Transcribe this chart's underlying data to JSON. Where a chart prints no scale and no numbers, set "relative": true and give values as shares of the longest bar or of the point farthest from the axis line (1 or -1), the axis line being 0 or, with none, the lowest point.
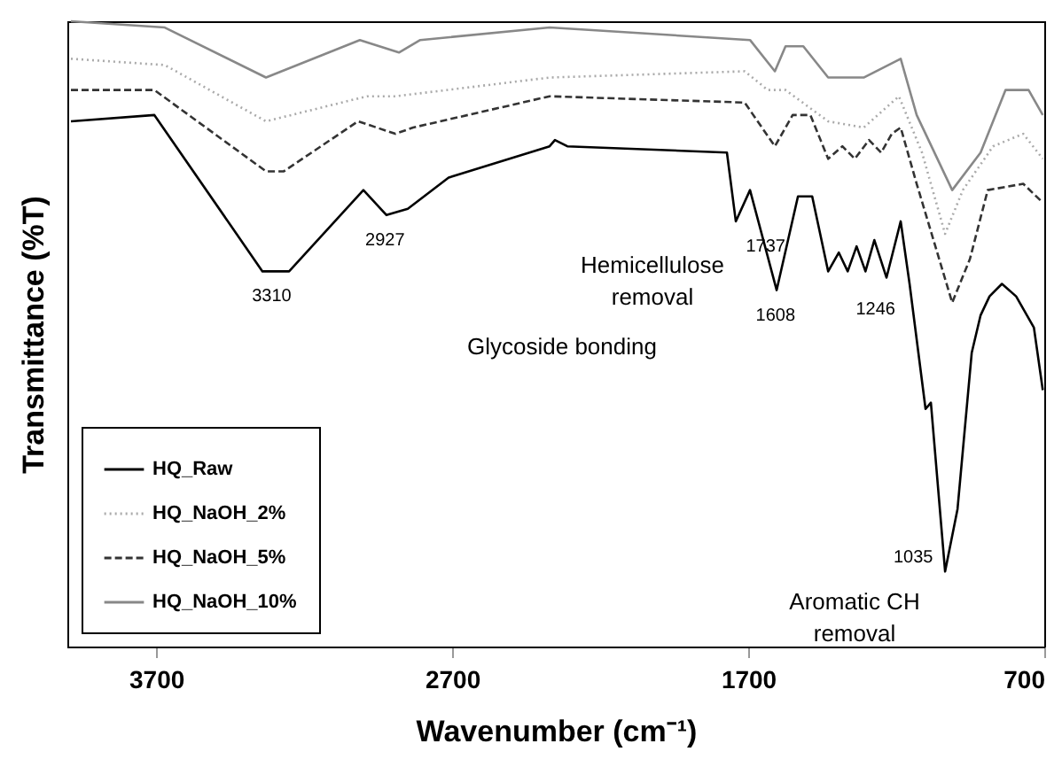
{
  "chart_data": {
    "type": "line",
    "xlabel": "Wavenumber (cm⁻¹)",
    "ylabel": "Transmittance (%T)",
    "relative": true,
    "xlim": [
      4000,
      700
    ],
    "xticks": [
      3700,
      2700,
      1700,
      700
    ],
    "legend": "bottom left",
    "marker": "none",
    "series": [
      {
        "name": "HQ_Raw",
        "color": "#000000",
        "line_style": "solid",
        "x": [
          3988,
          3706,
          3341,
          3251,
          3000,
          2922,
          2850,
          2712,
          2371,
          2353,
          2311,
          1772,
          1742,
          1694,
          1604,
          1532,
          1484,
          1430,
          1394,
          1364,
          1334,
          1304,
          1274,
          1233,
          1185,
          1155,
          1101,
          1083,
          1035,
          993,
          945,
          915,
          885,
          843,
          795,
          735,
          705
        ],
        "values": [
          0.84,
          0.85,
          0.6,
          0.6,
          0.73,
          0.69,
          0.7,
          0.75,
          0.8,
          0.81,
          0.8,
          0.79,
          0.68,
          0.73,
          0.57,
          0.72,
          0.72,
          0.6,
          0.63,
          0.6,
          0.64,
          0.6,
          0.65,
          0.59,
          0.68,
          0.58,
          0.38,
          0.39,
          0.12,
          0.22,
          0.47,
          0.53,
          0.56,
          0.58,
          0.56,
          0.51,
          0.41
        ]
      },
      {
        "name": "HQ_NaOH_2%",
        "color": "#aaaaaa",
        "line_style": "dotted",
        "x": [
          3988,
          3671,
          3329,
          2988,
          2892,
          2371,
          1712,
          1634,
          1574,
          1430,
          1310,
          1191,
          1113,
          1035,
          975,
          873,
          771,
          705
        ],
        "values": [
          0.94,
          0.93,
          0.84,
          0.88,
          0.88,
          0.91,
          0.92,
          0.89,
          0.89,
          0.84,
          0.83,
          0.88,
          0.79,
          0.66,
          0.73,
          0.8,
          0.82,
          0.78
        ]
      },
      {
        "name": "HQ_NaOH_5%",
        "color": "#333333",
        "line_style": "dashed",
        "x": [
          3988,
          3706,
          3329,
          3269,
          3018,
          2892,
          2832,
          2371,
          1712,
          1610,
          1550,
          1490,
          1430,
          1382,
          1340,
          1292,
          1251,
          1215,
          1185,
          1131,
          1011,
          951,
          891,
          771,
          705
        ],
        "values": [
          0.89,
          0.89,
          0.76,
          0.76,
          0.84,
          0.82,
          0.83,
          0.88,
          0.87,
          0.8,
          0.85,
          0.85,
          0.78,
          0.8,
          0.78,
          0.81,
          0.79,
          0.82,
          0.83,
          0.74,
          0.55,
          0.62,
          0.73,
          0.74,
          0.71
        ]
      },
      {
        "name": "HQ_NaOH_10%",
        "color": "#888888",
        "line_style": "solid",
        "x": [
          3988,
          3671,
          3329,
          3012,
          2880,
          2808,
          2371,
          1694,
          1610,
          1574,
          1514,
          1430,
          1310,
          1185,
          1131,
          1011,
          915,
          831,
          753,
          705
        ],
        "values": [
          1.0,
          0.99,
          0.91,
          0.97,
          0.95,
          0.97,
          0.99,
          0.97,
          0.92,
          0.96,
          0.96,
          0.91,
          0.91,
          0.94,
          0.85,
          0.73,
          0.79,
          0.89,
          0.89,
          0.85
        ]
      }
    ],
    "annotations": [
      {
        "text": "3310",
        "x": 3310,
        "y": 0.6
      },
      {
        "text": "2927",
        "x": 2927,
        "y": 0.69
      },
      {
        "text": "1737",
        "x": 1737,
        "y": 0.68
      },
      {
        "text": "1608",
        "x": 1608,
        "y": 0.57
      },
      {
        "text": "1246",
        "x": 1246,
        "y": 0.59
      },
      {
        "text": "1035",
        "x": 1035,
        "y": 0.12
      },
      "Hemicellulose removal",
      "Glycoside bonding",
      "Aromatic CH removal"
    ]
  }
}
